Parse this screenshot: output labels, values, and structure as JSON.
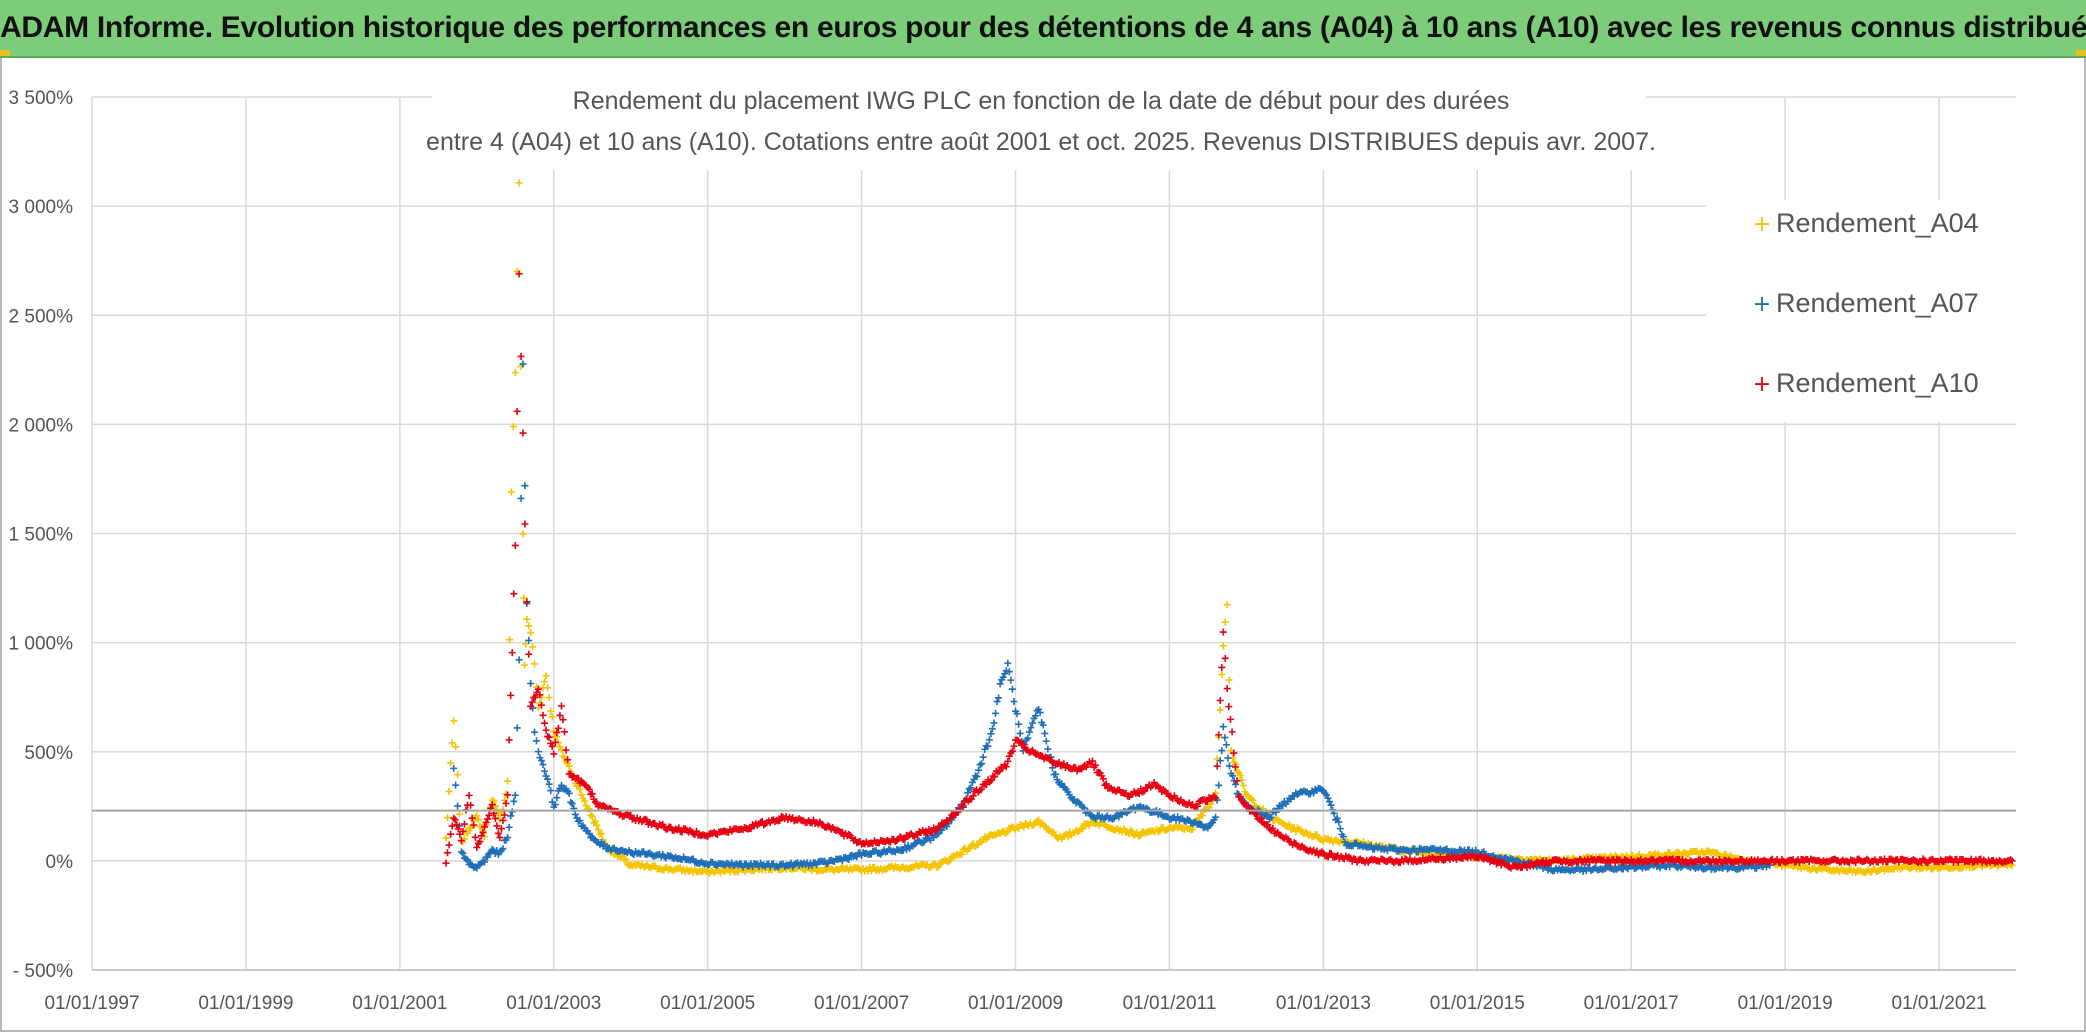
{
  "banner": {
    "title": "ADAM Informe. Evolution historique des performances en euros pour des détentions de 4 ans (A04) à 10 ans (A10) avec les revenus connus distribués"
  },
  "colors": {
    "banner_bg": "#7ccc7a",
    "A04": "#f5c400",
    "A07": "#1f6fb8",
    "A10": "#e60012",
    "grid": "#d9d9d9",
    "axis_text": "#555555"
  },
  "chart_data": {
    "type": "scatter",
    "title_line1": "Rendement du placement IWG PLC en fonction de la date de début pour des durées",
    "title_line2": "entre 4 (A04) et 10 ans (A10). Cotations entre août 2001 et oct. 2025. Revenus DISTRIBUES depuis avr. 2007.",
    "x_range": [
      1997.0,
      2022.0
    ],
    "y_range": [
      -500,
      3500
    ],
    "x_ticks": [
      1997,
      1999,
      2001,
      2003,
      2005,
      2007,
      2009,
      2011,
      2013,
      2015,
      2017,
      2019,
      2021
    ],
    "x_tick_labels": [
      "01/01/1997",
      "01/01/1999",
      "01/01/2001",
      "01/01/2003",
      "01/01/2005",
      "01/01/2007",
      "01/01/2009",
      "01/01/2011",
      "01/01/2013",
      "01/01/2015",
      "01/01/2017",
      "01/01/2019",
      "01/01/2021"
    ],
    "y_ticks": [
      -500,
      0,
      500,
      1000,
      1500,
      2000,
      2500,
      3000,
      3500
    ],
    "y_tick_labels": [
      "- 500%",
      "0%",
      "500%",
      "1 000%",
      "1 500%",
      "2 000%",
      "2 500%",
      "3 000%",
      "3 500%"
    ],
    "reference_line_y": 230,
    "legend_position": "top-right",
    "series": [
      {
        "name": "Rendement_A04",
        "color": "#f5c400",
        "x": [
          2001.6,
          2001.7,
          2001.75,
          2001.8,
          2001.9,
          2002.0,
          2002.1,
          2002.2,
          2002.3,
          2002.4,
          2002.45,
          2002.5,
          2002.55,
          2002.6,
          2002.62,
          2002.65,
          2002.7,
          2002.75,
          2002.8,
          2002.9,
          2003.0,
          2003.1,
          2003.2,
          2003.3,
          2003.5,
          2003.7,
          2004.0,
          2004.3,
          2004.6,
          2005.0,
          2005.5,
          2006.0,
          2006.5,
          2007.0,
          2007.5,
          2008.0,
          2008.3,
          2008.6,
          2009.0,
          2009.3,
          2009.6,
          2010.0,
          2010.3,
          2010.6,
          2011.0,
          2011.3,
          2011.6,
          2011.7,
          2011.75,
          2011.8,
          2011.9,
          2012.0,
          2012.3,
          2012.6,
          2013.0,
          2013.5,
          2014.0,
          2014.5,
          2015.0,
          2015.5,
          2016.0,
          2016.5,
          2017.0,
          2017.5,
          2018.0,
          2018.5,
          2019.0,
          2019.5,
          2020.0,
          2020.5,
          2021.0,
          2021.5,
          2021.95
        ],
        "y": [
          100,
          640,
          380,
          80,
          150,
          200,
          120,
          290,
          180,
          350,
          1700,
          2250,
          3100,
          1500,
          900,
          1100,
          1050,
          900,
          700,
          850,
          600,
          500,
          430,
          350,
          200,
          60,
          -20,
          -30,
          -40,
          -50,
          -40,
          -30,
          -40,
          -40,
          -30,
          -20,
          40,
          100,
          150,
          180,
          100,
          180,
          150,
          120,
          150,
          150,
          300,
          1000,
          1200,
          500,
          400,
          300,
          200,
          150,
          100,
          80,
          50,
          30,
          20,
          10,
          0,
          10,
          20,
          30,
          40,
          0,
          -20,
          -40,
          -50,
          -30,
          -30,
          -20,
          -20
        ]
      },
      {
        "name": "Rendement_A07",
        "color": "#1f6fb8",
        "x": [
          2001.7,
          2001.75,
          2001.8,
          2001.9,
          2002.0,
          2002.1,
          2002.2,
          2002.3,
          2002.4,
          2002.5,
          2002.55,
          2002.6,
          2002.65,
          2002.7,
          2002.75,
          2002.8,
          2002.9,
          2003.0,
          2003.1,
          2003.2,
          2003.3,
          2003.5,
          2003.7,
          2004.0,
          2004.5,
          2005.0,
          2005.5,
          2006.0,
          2006.5,
          2007.0,
          2007.5,
          2008.0,
          2008.3,
          2008.5,
          2008.7,
          2008.8,
          2008.9,
          2009.0,
          2009.1,
          2009.3,
          2009.5,
          2009.7,
          2010.0,
          2010.3,
          2010.6,
          2011.0,
          2011.3,
          2011.5,
          2011.6,
          2011.7,
          2011.8,
          2011.9,
          2012.0,
          2012.3,
          2012.6,
          2013.0,
          2013.1,
          2013.3,
          2013.6,
          2014.0,
          2014.5,
          2015.0,
          2015.5,
          2016.0,
          2016.5,
          2017.0,
          2017.5,
          2018.0,
          2018.5,
          2018.8
        ],
        "y": [
          420,
          250,
          50,
          -20,
          -30,
          0,
          50,
          30,
          120,
          300,
          950,
          2300,
          1200,
          800,
          600,
          500,
          400,
          250,
          350,
          300,
          200,
          100,
          60,
          40,
          20,
          -10,
          -20,
          -20,
          -10,
          30,
          50,
          120,
          250,
          400,
          600,
          800,
          900,
          700,
          500,
          700,
          400,
          300,
          200,
          200,
          250,
          200,
          180,
          150,
          200,
          600,
          400,
          300,
          250,
          200,
          300,
          330,
          250,
          80,
          60,
          50,
          50,
          40,
          0,
          -40,
          -40,
          -30,
          -20,
          -30,
          -30,
          -20
        ]
      },
      {
        "name": "Rendement_A10",
        "color": "#e60012",
        "x": [
          2001.6,
          2001.7,
          2001.8,
          2001.9,
          2002.0,
          2002.1,
          2002.2,
          2002.3,
          2002.4,
          2002.5,
          2002.55,
          2002.6,
          2002.65,
          2002.7,
          2002.8,
          2002.9,
          2003.0,
          2003.1,
          2003.2,
          2003.4,
          2003.6,
          2004.0,
          2004.5,
          2005.0,
          2005.5,
          2006.0,
          2006.5,
          2007.0,
          2007.5,
          2008.0,
          2008.3,
          2008.6,
          2008.9,
          2009.0,
          2009.2,
          2009.5,
          2009.8,
          2010.0,
          2010.2,
          2010.5,
          2010.8,
          2011.0,
          2011.3,
          2011.6,
          2011.7,
          2011.75,
          2011.9,
          2012.0,
          2012.3,
          2012.6,
          2013.0,
          2013.5,
          2014.0,
          2014.5,
          2015.0,
          2015.5,
          2016.0,
          2016.5,
          2017.0,
          2017.5,
          2018.0,
          2018.5,
          2019.0,
          2019.5,
          2020.0,
          2020.5,
          2021.0,
          2021.5,
          2021.95
        ],
        "y": [
          0,
          200,
          100,
          300,
          50,
          150,
          250,
          100,
          300,
          1450,
          2670,
          1950,
          1200,
          700,
          800,
          600,
          500,
          700,
          400,
          350,
          250,
          200,
          150,
          120,
          150,
          200,
          170,
          80,
          100,
          150,
          250,
          350,
          450,
          550,
          500,
          450,
          420,
          450,
          330,
          300,
          350,
          300,
          250,
          300,
          1050,
          800,
          300,
          250,
          150,
          80,
          30,
          0,
          0,
          10,
          20,
          -30,
          0,
          0,
          0,
          0,
          0,
          0,
          0,
          0,
          0,
          0,
          0,
          0,
          0
        ]
      }
    ]
  }
}
